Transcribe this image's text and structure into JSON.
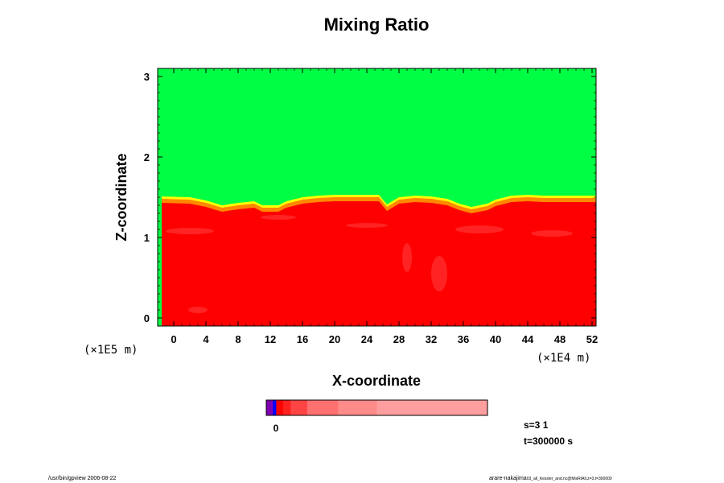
{
  "chart_data": {
    "type": "heatmap",
    "title": "Mixing Ratio",
    "xlabel": "X-coordinate",
    "ylabel": "Z-coordinate",
    "x_unit_label": "(×1E4 m)",
    "y_unit_label": "(×1E5 m)",
    "xlim": [
      -2,
      52.5
    ],
    "ylim": [
      -0.1,
      3.1
    ],
    "x_ticks": [
      "0",
      "4",
      "8",
      "12",
      "16",
      "20",
      "24",
      "28",
      "32",
      "36",
      "40",
      "44",
      "48",
      "52"
    ],
    "y_ticks": [
      "0",
      "1",
      "2",
      "3"
    ],
    "colorbar": {
      "tick_label": "0",
      "colors": [
        "#7f00b2",
        "#0000ff",
        "#ff0000",
        "#ff2020",
        "#ff4444",
        "#ff7070",
        "#ff8a8a",
        "#ff9e9e"
      ]
    },
    "field_colors": {
      "upper": "#00ff44",
      "transition": [
        "#ffff00",
        "#ff8800"
      ],
      "lower": "#ff0000",
      "lower_patches": "#ff4040"
    },
    "interface_profile": {
      "x": [
        -1.5,
        2,
        4,
        6,
        8,
        10,
        11,
        13,
        14,
        16,
        18,
        20,
        22,
        24,
        25.5,
        26.5,
        28,
        30,
        32,
        34,
        35.5,
        37,
        39,
        40,
        42,
        44,
        46,
        48,
        50,
        52.5
      ],
      "z": [
        1.46,
        1.45,
        1.41,
        1.35,
        1.38,
        1.4,
        1.35,
        1.35,
        1.4,
        1.45,
        1.47,
        1.48,
        1.48,
        1.48,
        1.48,
        1.36,
        1.45,
        1.47,
        1.46,
        1.43,
        1.37,
        1.33,
        1.37,
        1.42,
        1.47,
        1.48,
        1.47,
        1.47,
        1.47,
        1.47
      ]
    }
  },
  "annotations": {
    "s_label": "s=3 1",
    "t_label": "t=300000 s"
  },
  "footer": {
    "left": "/usr/bin/gpview 2006-08-22",
    "right": "arare-nakajima",
    "right_suffix": "03_all_Kessler_and.nc@MixRtAll,z=3,t=300000"
  }
}
